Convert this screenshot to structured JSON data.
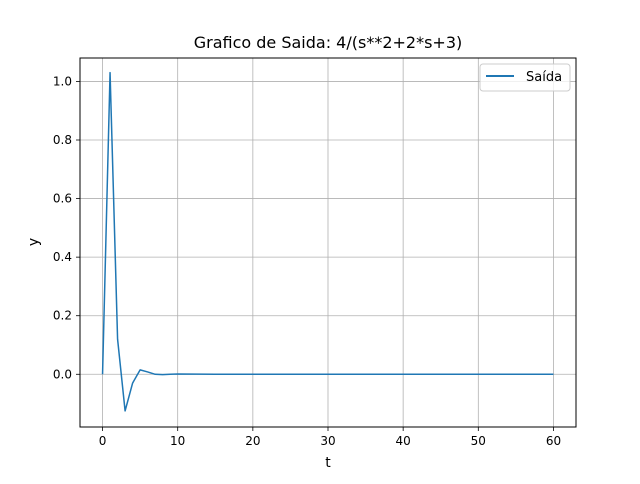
{
  "chart_data": {
    "type": "line",
    "title": "Grafico de Saida: 4/(s**2+2*s+3)",
    "xlabel": "t",
    "ylabel": "y",
    "xlim": [
      -3,
      63
    ],
    "ylim": [
      -0.18,
      1.08
    ],
    "xticks": [
      0,
      10,
      20,
      30,
      40,
      50,
      60
    ],
    "xtick_labels": [
      "0",
      "10",
      "20",
      "30",
      "40",
      "50",
      "60"
    ],
    "yticks": [
      0.0,
      0.2,
      0.4,
      0.6,
      0.8,
      1.0
    ],
    "ytick_labels": [
      "0.0",
      "0.2",
      "0.4",
      "0.6",
      "0.8",
      "1.0"
    ],
    "grid": true,
    "legend": {
      "position": "top-right",
      "entries": [
        "Saída"
      ]
    },
    "series": [
      {
        "name": "Saída",
        "color": "#1f77b4",
        "x": [
          0,
          1,
          2,
          3,
          4,
          5,
          6,
          7,
          8,
          9,
          10,
          15,
          20,
          30,
          40,
          50,
          60
        ],
        "y": [
          0.0,
          1.03,
          0.12,
          -0.125,
          -0.03,
          0.015,
          0.008,
          0.0,
          -0.001,
          0.0,
          0.001,
          0.0,
          0.0,
          0.0,
          0.0,
          0.0,
          0.0
        ]
      }
    ]
  }
}
